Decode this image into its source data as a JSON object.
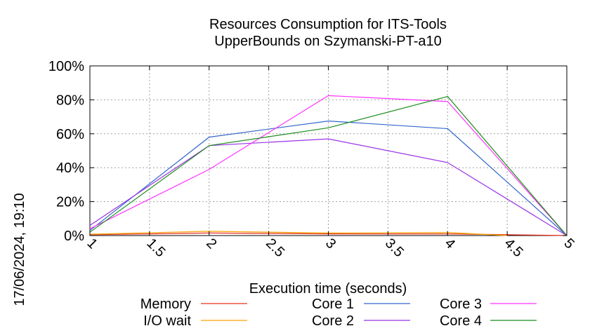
{
  "chart_data": {
    "type": "line",
    "title": [
      "Resources Consumption for ITS-Tools",
      "UpperBounds on Szymanski-PT-a10"
    ],
    "xlabel": "Execution time (seconds)",
    "ylabel": "",
    "timestamp": "17/06/2024, 19:10",
    "xlim": [
      1,
      5
    ],
    "ylim": [
      0,
      100
    ],
    "x_ticks": [
      1,
      1.5,
      2,
      2.5,
      3,
      3.5,
      4,
      4.5,
      5
    ],
    "x_tick_labels": [
      "1",
      "1.5",
      "2",
      "2.5",
      "3",
      "3.5",
      "4",
      "4.5",
      "5"
    ],
    "y_ticks": [
      0,
      20,
      40,
      60,
      80,
      100
    ],
    "y_tick_labels": [
      "0%",
      "20%",
      "40%",
      "60%",
      "80%",
      "100%"
    ],
    "grid": true,
    "legend_position": "bottom",
    "series": [
      {
        "name": "Memory",
        "color": "#e8301f",
        "x": [
          1,
          2,
          3,
          4,
          5
        ],
        "y": [
          0.5,
          1.5,
          1,
          1,
          0
        ]
      },
      {
        "name": "I/O wait",
        "color": "#f5a300",
        "x": [
          1,
          2,
          3,
          4,
          4.5
        ],
        "y": [
          0.8,
          2.5,
          1.5,
          1.8,
          0
        ]
      },
      {
        "name": "Core 1",
        "color": "#3366cc",
        "x": [
          1,
          2,
          3,
          4,
          5
        ],
        "y": [
          3,
          58,
          67.5,
          63,
          0
        ]
      },
      {
        "name": "Core 2",
        "color": "#9933e6",
        "x": [
          1,
          2,
          3,
          4,
          5
        ],
        "y": [
          6,
          53,
          57,
          43,
          0
        ]
      },
      {
        "name": "Core 3",
        "color": "#ff33ff",
        "x": [
          1,
          2,
          3,
          4,
          5
        ],
        "y": [
          4,
          39,
          82.5,
          79,
          0
        ]
      },
      {
        "name": "Core 4",
        "color": "#1e8c1e",
        "x": [
          1,
          2,
          3,
          4,
          5
        ],
        "y": [
          2,
          53,
          63.5,
          82,
          0
        ]
      }
    ]
  }
}
